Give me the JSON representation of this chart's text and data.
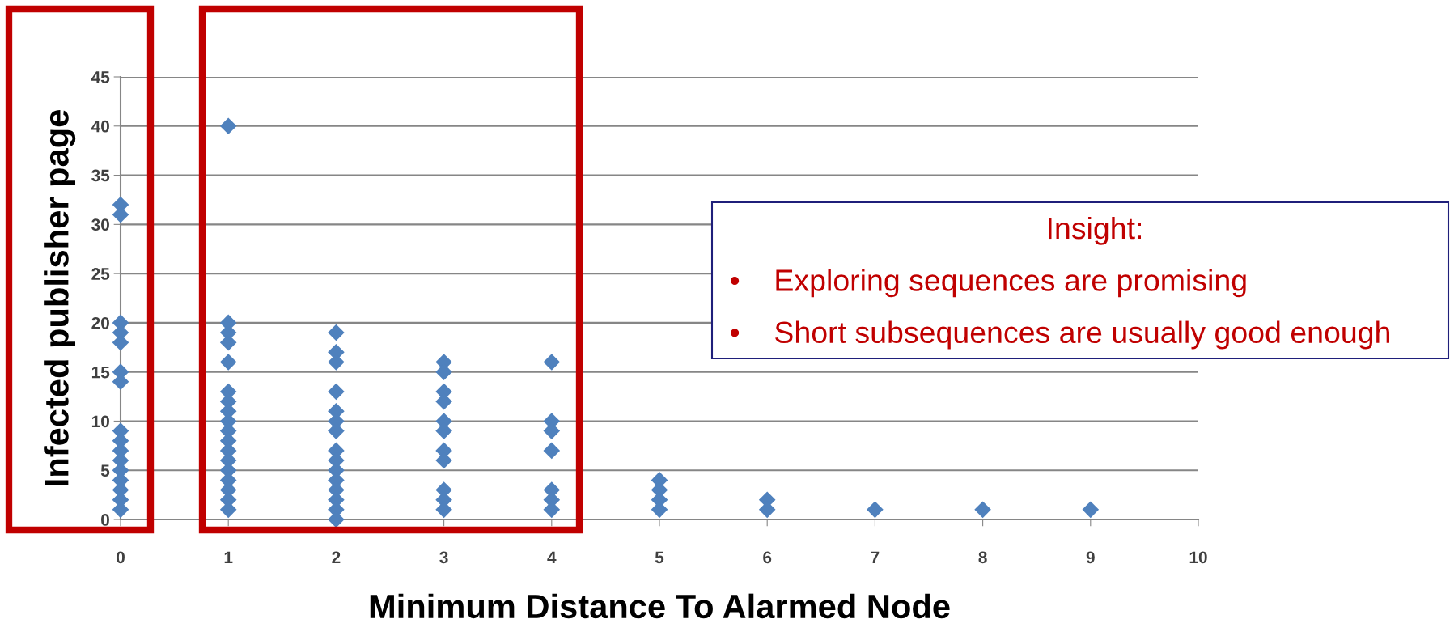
{
  "chart_data": {
    "type": "scatter",
    "xlabel": "Minimum Distance To Alarmed Node",
    "ylabel": "Infected publisher page",
    "series": [
      {
        "color": "#4f81bd",
        "x": [
          0,
          0,
          0,
          0,
          0,
          0,
          0,
          0,
          0,
          0,
          0,
          0,
          0,
          0,
          0,
          0,
          1,
          1,
          1,
          1,
          1,
          1,
          1,
          1,
          1,
          1,
          1,
          1,
          1,
          1,
          1,
          1,
          1,
          1,
          2,
          2,
          2,
          2,
          2,
          2,
          2,
          2,
          2,
          2,
          2,
          2,
          2,
          2,
          2,
          3,
          3,
          3,
          3,
          3,
          3,
          3,
          3,
          3,
          3,
          3,
          4,
          4,
          4,
          4,
          4,
          4,
          4,
          5,
          5,
          5,
          5,
          6,
          6,
          7,
          8,
          9
        ],
        "values": [
          32,
          31,
          20,
          19,
          18,
          15,
          14,
          9,
          8,
          7,
          6,
          5,
          4,
          3,
          2,
          1,
          40,
          20,
          19,
          18,
          16,
          13,
          12,
          11,
          10,
          9,
          8,
          7,
          6,
          5,
          4,
          3,
          2,
          1,
          19,
          17,
          16,
          13,
          11,
          10,
          9,
          7,
          6,
          5,
          4,
          3,
          2,
          1,
          0,
          16,
          15,
          13,
          12,
          10,
          9,
          7,
          6,
          3,
          2,
          1,
          16,
          10,
          9,
          7,
          3,
          2,
          1,
          4,
          3,
          2,
          1,
          2,
          1,
          1,
          1,
          1
        ]
      }
    ],
    "xlim": [
      0,
      10
    ],
    "xticks": [
      0,
      1,
      2,
      3,
      4,
      5,
      6,
      7,
      8,
      9,
      10
    ],
    "ylim": [
      0,
      45
    ],
    "yticks": [
      0,
      5,
      10,
      15,
      20,
      25,
      30,
      35,
      40,
      45
    ],
    "grid": "y",
    "marker": "diamond",
    "annotations": [
      "Insight:",
      "•    Exploring sequences are promising",
      "•    Short subsequences are usually good enough"
    ]
  }
}
